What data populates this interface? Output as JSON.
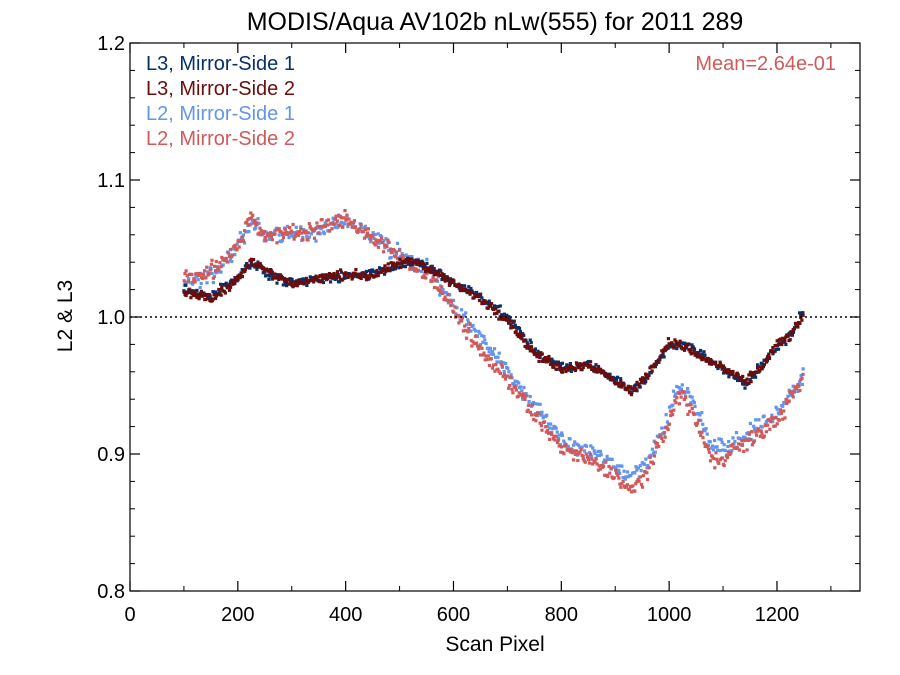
{
  "chart_data": {
    "type": "scatter",
    "title": "MODIS/Aqua AV102b nLw(555) for 2011 289",
    "xlabel": "Scan Pixel",
    "ylabel": "L2 & L3",
    "xlim": [
      0,
      1354
    ],
    "ylim": [
      0.8,
      1.2
    ],
    "x_ticks": [
      0,
      200,
      400,
      600,
      800,
      1000,
      1200
    ],
    "x_tick_labels": [
      "0",
      "200",
      "400",
      "600",
      "800",
      "1000",
      "1200"
    ],
    "y_ticks": [
      0.8,
      0.9,
      1.0,
      1.1,
      1.2
    ],
    "y_tick_labels": [
      "0.8",
      "0.9",
      "1.0",
      "1.1",
      "1.2"
    ],
    "reference_line": 1.0,
    "legend_position": "top-left",
    "annotation": {
      "text": "Mean=2.64e-01",
      "position": "top-right",
      "color": "#d05a5a"
    },
    "series": [
      {
        "name": "L3, Mirror-Side 1",
        "color": "#08306b",
        "spread": 0.005,
        "x": [
          100,
          150,
          200,
          225,
          260,
          300,
          350,
          400,
          450,
          500,
          530,
          560,
          600,
          650,
          700,
          750,
          800,
          850,
          900,
          930,
          960,
          1000,
          1030,
          1060,
          1100,
          1140,
          1170,
          1200,
          1230,
          1250
        ],
        "y": [
          1.02,
          1.015,
          1.03,
          1.04,
          1.03,
          1.025,
          1.027,
          1.03,
          1.032,
          1.038,
          1.04,
          1.035,
          1.025,
          1.015,
          1.0,
          0.975,
          0.963,
          0.965,
          0.955,
          0.945,
          0.957,
          0.98,
          0.98,
          0.972,
          0.962,
          0.95,
          0.965,
          0.978,
          0.99,
          1.005
        ]
      },
      {
        "name": "L3, Mirror-Side 2",
        "color": "#6b0d0d",
        "spread": 0.005,
        "x": [
          100,
          150,
          200,
          225,
          260,
          300,
          350,
          400,
          450,
          500,
          530,
          560,
          600,
          650,
          700,
          750,
          800,
          850,
          900,
          930,
          960,
          1000,
          1030,
          1060,
          1100,
          1140,
          1170,
          1200,
          1230,
          1250
        ],
        "y": [
          1.018,
          1.013,
          1.028,
          1.042,
          1.032,
          1.024,
          1.028,
          1.031,
          1.03,
          1.039,
          1.041,
          1.034,
          1.024,
          1.013,
          0.998,
          0.973,
          0.962,
          0.966,
          0.953,
          0.946,
          0.958,
          0.982,
          0.978,
          0.97,
          0.963,
          0.952,
          0.963,
          0.98,
          0.988,
          1.003
        ]
      },
      {
        "name": "L2, Mirror-Side 1",
        "color": "#6495ed",
        "spread": 0.009,
        "x": [
          100,
          150,
          200,
          225,
          250,
          300,
          350,
          400,
          450,
          500,
          550,
          600,
          650,
          700,
          750,
          800,
          850,
          900,
          930,
          960,
          1000,
          1020,
          1050,
          1080,
          1100,
          1150,
          1200,
          1250
        ],
        "y": [
          1.025,
          1.03,
          1.05,
          1.07,
          1.06,
          1.06,
          1.063,
          1.07,
          1.06,
          1.045,
          1.035,
          1.01,
          0.985,
          0.96,
          0.935,
          0.912,
          0.902,
          0.892,
          0.882,
          0.895,
          0.93,
          0.95,
          0.935,
          0.905,
          0.905,
          0.915,
          0.93,
          0.958
        ]
      },
      {
        "name": "L2, Mirror-Side 2",
        "color": "#d05a5a",
        "spread": 0.009,
        "x": [
          100,
          150,
          200,
          225,
          250,
          300,
          350,
          400,
          450,
          500,
          550,
          600,
          650,
          700,
          750,
          800,
          850,
          900,
          930,
          960,
          1000,
          1020,
          1050,
          1080,
          1100,
          1150,
          1200,
          1250
        ],
        "y": [
          1.027,
          1.033,
          1.052,
          1.075,
          1.058,
          1.062,
          1.065,
          1.072,
          1.058,
          1.043,
          1.033,
          1.005,
          0.975,
          0.955,
          0.928,
          0.905,
          0.895,
          0.885,
          0.872,
          0.888,
          0.925,
          0.945,
          0.925,
          0.895,
          0.898,
          0.91,
          0.925,
          0.955
        ]
      }
    ]
  }
}
